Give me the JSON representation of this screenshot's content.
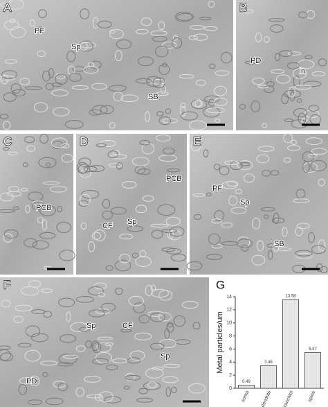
{
  "panels": [
    {
      "letter": "A",
      "labels": [
        "PF",
        "Sp",
        "SB"
      ]
    },
    {
      "letter": "B",
      "labels": [
        "PD",
        "In"
      ]
    },
    {
      "letter": "C",
      "labels": [
        "PCB"
      ]
    },
    {
      "letter": "D",
      "labels": [
        "PCB",
        "CF",
        "Sp"
      ]
    },
    {
      "letter": "E",
      "labels": [
        "PF",
        "Sp",
        "SB"
      ]
    },
    {
      "letter": "F",
      "labels": [
        "Sp",
        "CF",
        "Sp",
        "PD"
      ]
    }
  ],
  "chart_data": {
    "type": "bar",
    "letter": "G",
    "y_label": "Metal particles/um",
    "categories": [
      "soma",
      "proximal dendrite",
      "spiny branchlet",
      "spine"
    ],
    "values": [
      0.49,
      3.46,
      13.58,
      5.47
    ],
    "color": "#e6e6e6",
    "ylim": [
      0,
      14
    ],
    "yticks": [
      0,
      2,
      4,
      6,
      8,
      10,
      12,
      14
    ]
  }
}
